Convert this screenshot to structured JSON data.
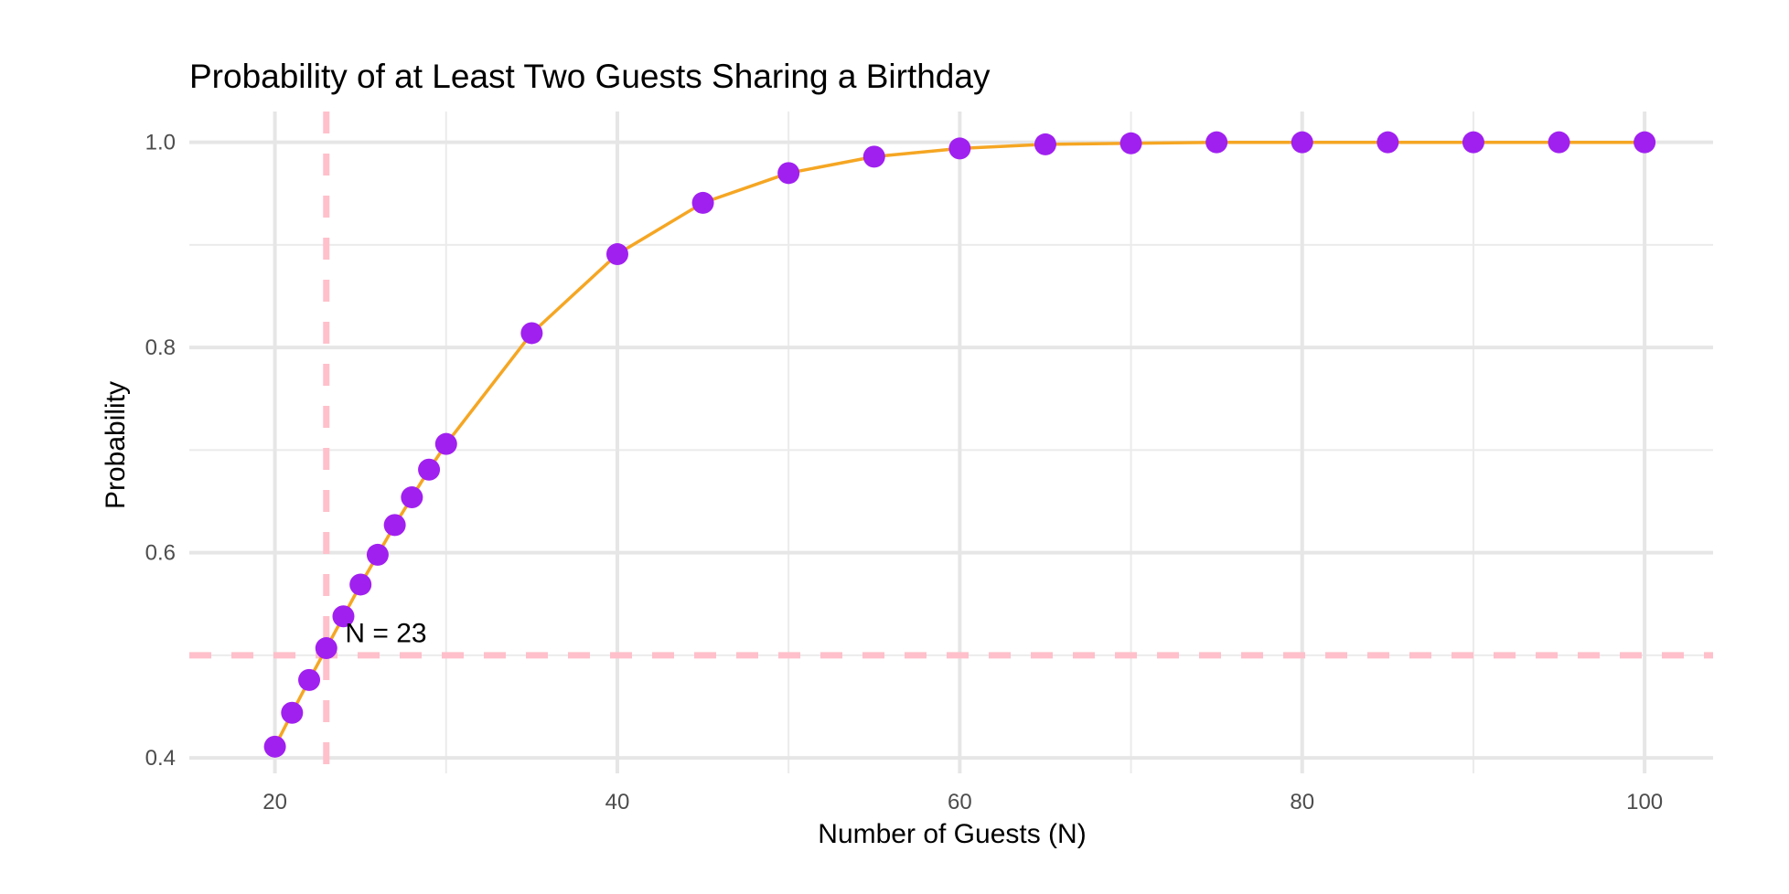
{
  "chart_data": {
    "type": "line",
    "title": "Probability of at Least Two Guests Sharing a Birthday",
    "xlabel": "Number of Guests (N)",
    "ylabel": "Probability",
    "xlim": [
      15,
      104
    ],
    "ylim": [
      0.385,
      1.03
    ],
    "x_ticks": [
      20,
      40,
      60,
      80,
      100
    ],
    "x_tick_labels": [
      "20",
      "40",
      "60",
      "80",
      "100"
    ],
    "x_minor_ticks": [
      30,
      50,
      70,
      90
    ],
    "y_ticks": [
      0.4,
      0.6,
      0.8,
      1.0
    ],
    "y_tick_labels": [
      "0.4",
      "0.6",
      "0.8",
      "1.0"
    ],
    "y_minor_ticks": [
      0.5,
      0.7,
      0.9
    ],
    "grid": true,
    "legend": "none",
    "series": [
      {
        "x": [
          20,
          21,
          22,
          23,
          24,
          25,
          26,
          27,
          28,
          29,
          30,
          35,
          40,
          45,
          50,
          55,
          60,
          65,
          70,
          75,
          80,
          85,
          90,
          95,
          100
        ],
        "y": [
          0.411,
          0.444,
          0.476,
          0.507,
          0.538,
          0.569,
          0.598,
          0.627,
          0.654,
          0.681,
          0.706,
          0.814,
          0.891,
          0.941,
          0.97,
          0.986,
          0.994,
          0.998,
          0.999,
          1.0,
          1.0,
          1.0,
          1.0,
          1.0,
          1.0
        ],
        "line_color": "#f5a623",
        "point_color": "#a020f0"
      }
    ],
    "reference_lines": [
      {
        "axis": "x",
        "value": 23,
        "color": "#ffc0cb",
        "style": "dashed"
      },
      {
        "axis": "y",
        "value": 0.5,
        "color": "#ffc0cb",
        "style": "dashed"
      }
    ],
    "annotations": [
      {
        "text": "N = 23",
        "x": 24.1,
        "y": 0.513
      }
    ]
  }
}
